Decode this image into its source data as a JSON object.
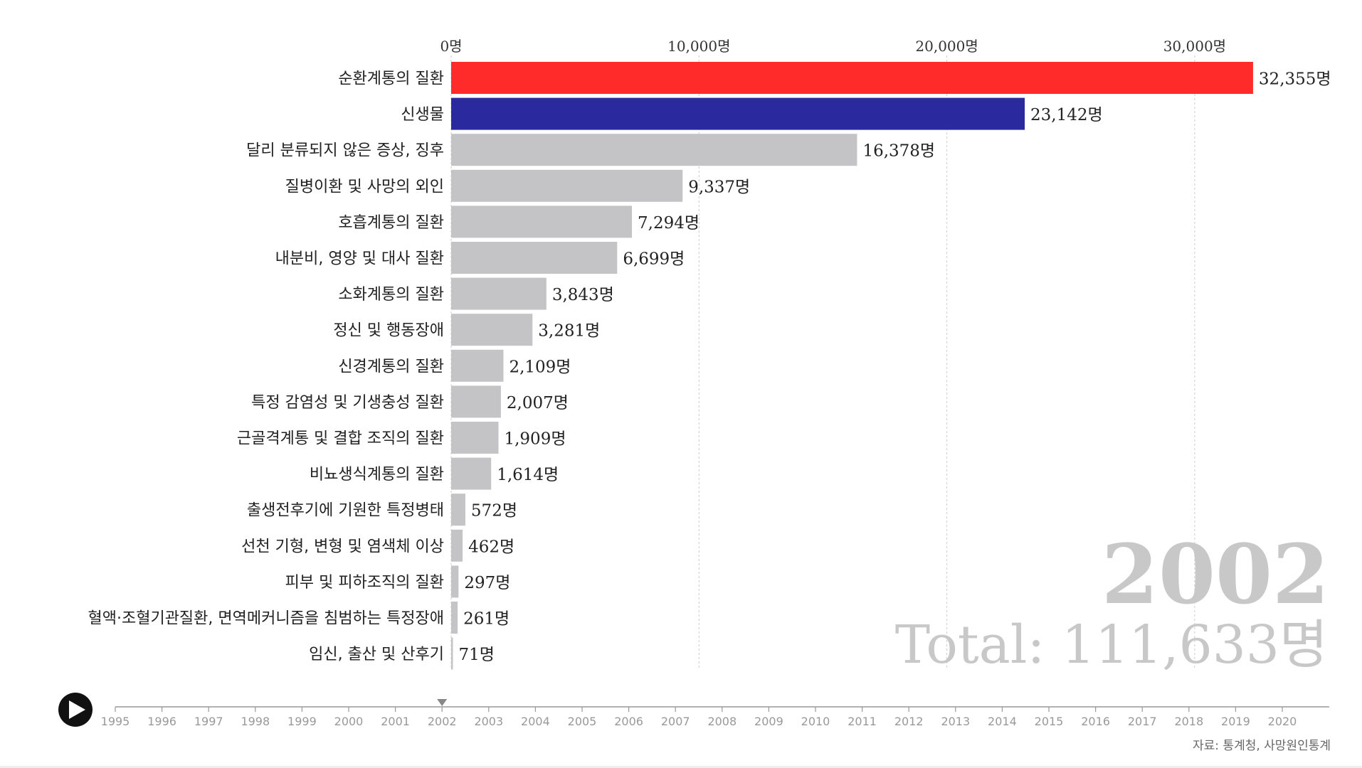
{
  "chart_data": {
    "type": "bar",
    "orientation": "horizontal",
    "unit": "명",
    "xlim": [
      0,
      33000
    ],
    "x_ticks": [
      {
        "value": 0,
        "label": "0명"
      },
      {
        "value": 10000,
        "label": "10,000명"
      },
      {
        "value": 20000,
        "label": "20,000명"
      },
      {
        "value": 30000,
        "label": "30,000명"
      }
    ],
    "categories": [
      "순환계통의 질환",
      "신생물",
      "달리 분류되지 않은 증상, 징후",
      "질병이환 및 사망의 외인",
      "호흡계통의 질환",
      "내분비, 영양 및 대사 질환",
      "소화계통의 질환",
      "정신 및 행동장애",
      "신경계통의 질환",
      "특정 감염성 및 기생충성 질환",
      "근골격계통 및 결합 조직의 질환",
      "비뇨생식계통의 질환",
      "출생전후기에 기원한 특정병태",
      "선천 기형, 변형 및 염색체 이상",
      "피부 및 피하조직의 질환",
      "혈액·조혈기관질환, 면역메커니즘을 침범하는 특정장애",
      "임신, 출산 및 산후기"
    ],
    "values": [
      32355,
      23142,
      16378,
      9337,
      7294,
      6699,
      3843,
      3281,
      2109,
      2007,
      1909,
      1614,
      572,
      462,
      297,
      261,
      71
    ],
    "value_labels": [
      "32,355명",
      "23,142명",
      "16,378명",
      "9,337명",
      "7,294명",
      "6,699명",
      "3,843명",
      "3,281명",
      "2,109명",
      "2,007명",
      "1,909명",
      "1,614명",
      "572명",
      "462명",
      "297명",
      "261명",
      "71명"
    ],
    "bar_colors": [
      "#ff2a2a",
      "#2a2a9e",
      "#c4c4c6",
      "#c4c4c6",
      "#c4c4c6",
      "#c4c4c6",
      "#c4c4c6",
      "#c4c4c6",
      "#c4c4c6",
      "#c4c4c6",
      "#c4c4c6",
      "#c4c4c6",
      "#c4c4c6",
      "#c4c4c6",
      "#c4c4c6",
      "#c4c4c6",
      "#c4c4c6"
    ],
    "grid": "vertical-dashed",
    "current_year": "2002",
    "total_label": "Total: 111,633명"
  },
  "timeline": {
    "years": [
      "1995",
      "1996",
      "1997",
      "1998",
      "1999",
      "2000",
      "2001",
      "2002",
      "2003",
      "2004",
      "2005",
      "2006",
      "2007",
      "2008",
      "2009",
      "2010",
      "2011",
      "2012",
      "2013",
      "2014",
      "2015",
      "2016",
      "2017",
      "2018",
      "2019",
      "2020"
    ],
    "selected": "2002",
    "play_icon": "play-icon"
  },
  "source": "자료: 통계청, 사망원인통계",
  "colors": {
    "highlight_red": "#ff2a2a",
    "highlight_blue": "#2a2a9e",
    "bar_default": "#c4c4c6",
    "watermark": "#c8c8c8",
    "axis_text": "#333333"
  }
}
